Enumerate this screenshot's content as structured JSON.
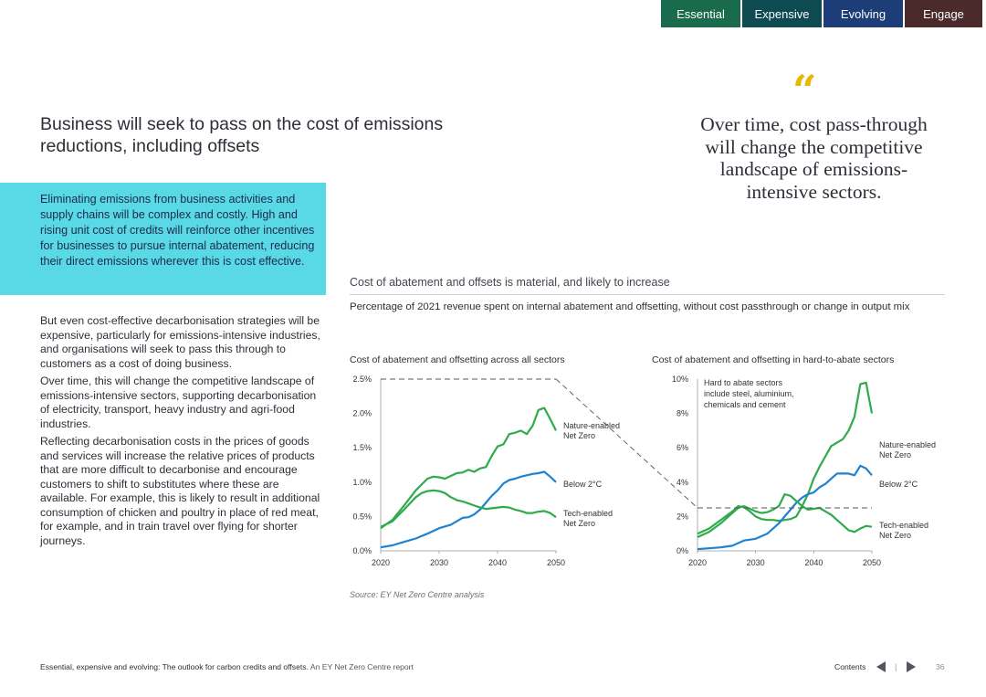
{
  "nav": {
    "tabs": [
      {
        "label": "Essential"
      },
      {
        "label": "Expensive"
      },
      {
        "label": "Evolving"
      },
      {
        "label": "Engage"
      }
    ]
  },
  "heading": "Business will seek to pass on the cost of emissions reductions, including offsets",
  "highlight": "Eliminating emissions from business activities and supply chains will be complex and costly. High and rising unit cost of credits will reinforce other incentives for businesses to pursue internal abatement, reducing their direct emissions wherever this is cost effective.",
  "body": [
    "But even cost-effective decarbonisation strategies will be expensive, particularly for emissions-intensive industries, and organisations will seek to pass this through to customers as a cost of doing business.",
    "Over time, this will change the competitive landscape of emissions-intensive sectors, supporting decarbonisation of electricity, transport, heavy industry and agri-food industries.",
    "Reflecting decarbonisation costs in the prices of goods and services will increase the relative prices of products that are more difficult to decarbonise and encourage customers to shift to substitutes where these are available. For example, this is likely to result in additional consumption of chicken and poultry in place of red meat, for example, and in train travel over flying for shorter journeys."
  ],
  "quote": {
    "mark": "“",
    "text": "Over time, cost pass-through will change the competitive landscape of emissions-intensive sectors."
  },
  "figure": {
    "title": "Cost of abatement and offsets is material, and likely to increase",
    "subtitle": "Percentage of 2021 revenue spent on internal abatement and offsetting, without cost passthrough or change in output mix",
    "source": "Source: EY Net Zero Centre analysis"
  },
  "colors": {
    "nature": "#2eab4a",
    "below2": "#1f82d1",
    "tech": "#2eab4a",
    "quote": "#e6b800",
    "highlight": "#59d8e6"
  },
  "chart_data": [
    {
      "type": "line",
      "title": "Cost of abatement and offsetting across all sectors",
      "xlabel": "",
      "ylabel": "",
      "xlim": [
        2020,
        2050
      ],
      "ylim": [
        0,
        2.5
      ],
      "xticks": [
        2020,
        2030,
        2040,
        2050
      ],
      "xtick_labels": [
        "2020",
        "2030",
        "2040",
        "2050"
      ],
      "yticks": [
        0,
        0.5,
        1.0,
        1.5,
        2.0,
        2.5
      ],
      "ytick_labels": [
        "0.0%",
        "0.5%",
        "1.0%",
        "1.5%",
        "2.0%",
        "2.5%"
      ],
      "grid": false,
      "series": [
        {
          "name": "Nature-enabled Net Zero",
          "color_key": "nature",
          "x": [
            2020,
            2022,
            2024,
            2026,
            2028,
            2029,
            2030,
            2031,
            2032,
            2033,
            2034,
            2035,
            2036,
            2037,
            2038,
            2039,
            2040,
            2041,
            2042,
            2043,
            2044,
            2045,
            2046,
            2047,
            2048,
            2049,
            2050
          ],
          "y": [
            0.33,
            0.45,
            0.66,
            0.88,
            1.05,
            1.08,
            1.07,
            1.05,
            1.09,
            1.13,
            1.14,
            1.18,
            1.15,
            1.2,
            1.22,
            1.38,
            1.52,
            1.55,
            1.7,
            1.72,
            1.75,
            1.7,
            1.82,
            2.05,
            2.08,
            1.92,
            1.75
          ]
        },
        {
          "name": "Below 2°C",
          "color_key": "below2",
          "x": [
            2020,
            2022,
            2024,
            2026,
            2028,
            2030,
            2032,
            2034,
            2035,
            2036,
            2037,
            2038,
            2039,
            2040,
            2041,
            2042,
            2043,
            2044,
            2045,
            2046,
            2047,
            2048,
            2049,
            2050
          ],
          "y": [
            0.05,
            0.08,
            0.13,
            0.18,
            0.25,
            0.33,
            0.38,
            0.48,
            0.49,
            0.53,
            0.6,
            0.7,
            0.8,
            0.88,
            0.98,
            1.03,
            1.05,
            1.08,
            1.1,
            1.12,
            1.13,
            1.15,
            1.08,
            1.0
          ]
        },
        {
          "name": "Tech-enabled Net Zero",
          "color_key": "tech",
          "x": [
            2020,
            2022,
            2024,
            2026,
            2027,
            2028,
            2029,
            2030,
            2031,
            2032,
            2033,
            2034,
            2035,
            2036,
            2037,
            2038,
            2039,
            2040,
            2041,
            2042,
            2043,
            2044,
            2045,
            2046,
            2047,
            2048,
            2049,
            2050
          ],
          "y": [
            0.35,
            0.43,
            0.6,
            0.78,
            0.84,
            0.87,
            0.88,
            0.87,
            0.84,
            0.78,
            0.74,
            0.72,
            0.69,
            0.66,
            0.63,
            0.61,
            0.62,
            0.63,
            0.64,
            0.63,
            0.6,
            0.58,
            0.55,
            0.55,
            0.57,
            0.58,
            0.55,
            0.49
          ]
        }
      ]
    },
    {
      "type": "line",
      "title": "Cost of abatement and offsetting in hard-to-abate sectors",
      "xlabel": "",
      "ylabel": "",
      "xlim": [
        2020,
        2050
      ],
      "ylim": [
        0,
        10
      ],
      "xticks": [
        2020,
        2030,
        2040,
        2050
      ],
      "xtick_labels": [
        "2020",
        "2030",
        "2040",
        "2050"
      ],
      "yticks": [
        0,
        2,
        4,
        6,
        8,
        10
      ],
      "ytick_labels": [
        "0%",
        "2%",
        "4%",
        "6%",
        "8%",
        "10%"
      ],
      "grid": false,
      "annotation": "Hard to abate sectors include steel, aluminium, chemicals and cement",
      "series": [
        {
          "name": "Nature-enabled Net Zero",
          "color_key": "nature",
          "x": [
            2020,
            2022,
            2024,
            2026,
            2027,
            2028,
            2029,
            2030,
            2031,
            2032,
            2033,
            2034,
            2035,
            2036,
            2037,
            2038,
            2039,
            2040,
            2041,
            2042,
            2043,
            2044,
            2045,
            2046,
            2047,
            2048,
            2049,
            2050
          ],
          "y": [
            1.0,
            1.3,
            1.8,
            2.3,
            2.6,
            2.55,
            2.3,
            2.0,
            1.85,
            1.8,
            1.8,
            1.75,
            1.8,
            1.85,
            2.0,
            2.6,
            3.3,
            4.2,
            4.9,
            5.5,
            6.1,
            6.3,
            6.5,
            7.0,
            7.8,
            9.7,
            9.8,
            8.0
          ]
        },
        {
          "name": "Below 2°C",
          "color_key": "below2",
          "x": [
            2020,
            2022,
            2024,
            2026,
            2028,
            2030,
            2032,
            2033,
            2034,
            2035,
            2036,
            2037,
            2038,
            2039,
            2040,
            2041,
            2042,
            2043,
            2044,
            2045,
            2046,
            2047,
            2048,
            2049,
            2050
          ],
          "y": [
            0.1,
            0.15,
            0.2,
            0.3,
            0.6,
            0.7,
            1.0,
            1.3,
            1.6,
            2.0,
            2.4,
            2.8,
            3.1,
            3.3,
            3.4,
            3.7,
            3.9,
            4.2,
            4.5,
            4.5,
            4.5,
            4.4,
            4.95,
            4.8,
            4.4
          ]
        },
        {
          "name": "Tech-enabled Net Zero",
          "color_key": "tech",
          "x": [
            2020,
            2022,
            2024,
            2026,
            2027,
            2028,
            2029,
            2030,
            2031,
            2032,
            2033,
            2034,
            2035,
            2036,
            2037,
            2038,
            2039,
            2040,
            2041,
            2042,
            2043,
            2044,
            2045,
            2046,
            2047,
            2048,
            2049,
            2050
          ],
          "y": [
            0.8,
            1.1,
            1.6,
            2.2,
            2.5,
            2.6,
            2.45,
            2.3,
            2.2,
            2.25,
            2.4,
            2.6,
            3.3,
            3.2,
            2.9,
            2.6,
            2.4,
            2.45,
            2.5,
            2.3,
            2.1,
            1.8,
            1.5,
            1.2,
            1.1,
            1.3,
            1.45,
            1.4
          ]
        }
      ]
    }
  ],
  "labels": {
    "nature": "Nature-enabled Net Zero",
    "below2": "Below 2°C",
    "tech": "Tech-enabled Net Zero"
  },
  "footer": {
    "title": "Essential, expensive and evolving: The outlook for carbon credits and offsets.",
    "subtitle": "An EY Net Zero Centre report",
    "contents": "Contents",
    "separator": "|",
    "page": "36"
  }
}
